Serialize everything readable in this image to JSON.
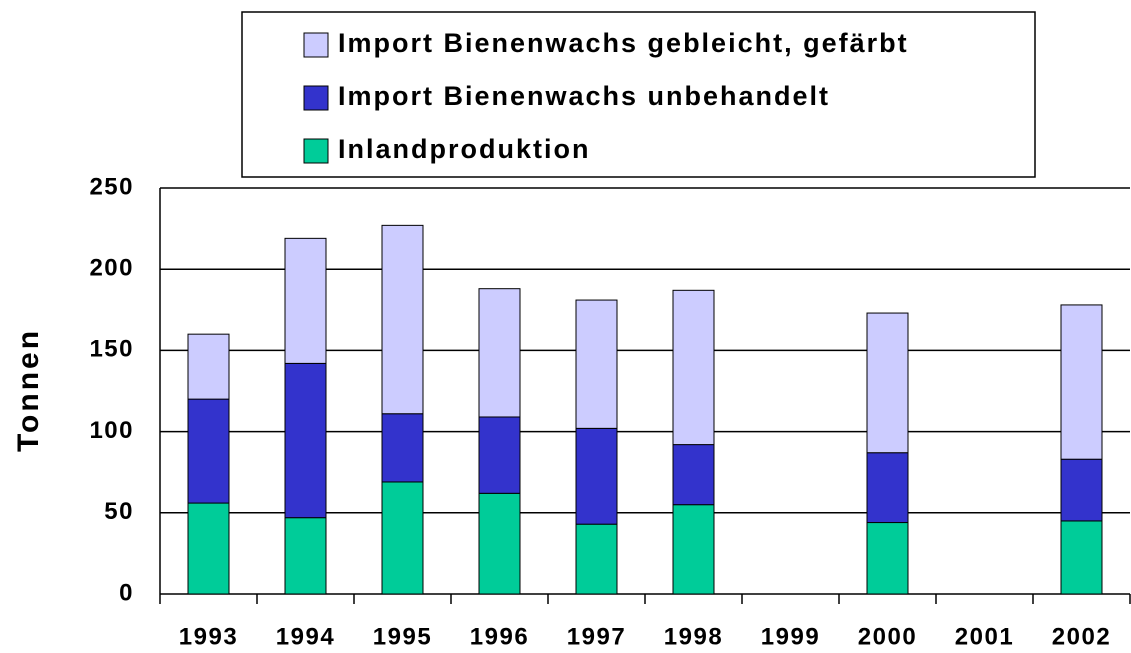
{
  "chart_data": {
    "type": "stacked_bar",
    "y_label": "Tonnen",
    "categories": [
      "1993",
      "1994",
      "1995",
      "1996",
      "1997",
      "1998",
      "1999",
      "2000",
      "2001",
      "2002"
    ],
    "series": [
      {
        "name": "Inlandproduktion",
        "color": "#00cc99",
        "values": [
          56,
          47,
          69,
          62,
          43,
          55,
          null,
          44,
          null,
          45
        ]
      },
      {
        "name": "Import Bienenwachs unbehandelt",
        "color": "#3333cc",
        "values": [
          64,
          95,
          42,
          47,
          59,
          37,
          null,
          43,
          null,
          38
        ]
      },
      {
        "name": "Import Bienenwachs gebleicht, gefärbt",
        "color": "#ccccff",
        "values": [
          40,
          77,
          116,
          79,
          79,
          95,
          null,
          86,
          null,
          95
        ]
      }
    ],
    "ylim": [
      0,
      250
    ],
    "yticks": [
      0,
      50,
      100,
      150,
      200,
      250
    ],
    "grid": true
  }
}
